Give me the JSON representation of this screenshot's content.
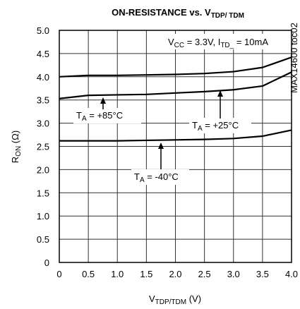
{
  "chart_data": {
    "type": "line",
    "title": [
      "ON-RESISTANCE vs. V",
      "TDP/ TDM"
    ],
    "x_label": [
      "V",
      "TDP/TDM",
      " (V)"
    ],
    "y_label": [
      "R",
      "ON",
      " (Ω)"
    ],
    "side_note": "MAX14600 toc02",
    "conditions": [
      "V",
      "CC",
      " = 3.3V, I",
      "TD_",
      " = 10mA"
    ],
    "annotations": [
      [
        "T",
        "A",
        " = +85°C"
      ],
      [
        "T",
        "A",
        " = +25°C"
      ],
      [
        "T",
        "A",
        " = -40°C"
      ]
    ],
    "x": [
      0,
      0.5,
      1,
      1.5,
      2,
      2.5,
      3,
      3.5,
      4
    ],
    "series": [
      {
        "color": "#000000",
        "values": [
          4.0,
          4.03,
          4.03,
          4.04,
          4.05,
          4.07,
          4.11,
          4.2,
          4.42
        ]
      },
      {
        "color": "#000000",
        "values": [
          3.53,
          3.6,
          3.61,
          3.62,
          3.65,
          3.68,
          3.72,
          3.8,
          4.1
        ]
      },
      {
        "color": "#000000",
        "values": [
          2.62,
          2.62,
          2.62,
          2.63,
          2.64,
          2.65,
          2.67,
          2.72,
          2.85
        ]
      }
    ],
    "xlim": [
      0,
      4
    ],
    "ylim": [
      0,
      5
    ],
    "xticks": [
      0,
      0.5,
      {
        "value": 1,
        "label": "1.0"
      },
      1.5,
      {
        "value": 2,
        "label": "2.0"
      },
      2.5,
      {
        "value": 3,
        "label": "3.0"
      },
      3.5,
      {
        "value": 4,
        "label": "4.0"
      }
    ],
    "yticks": [
      0,
      0.5,
      {
        "value": 1,
        "label": "1.0"
      },
      1.5,
      {
        "value": 2,
        "label": "2.0"
      },
      2.5,
      {
        "value": 3,
        "label": "3.0"
      },
      3.5,
      {
        "value": 4,
        "label": "4.0"
      },
      4.5,
      {
        "value": 5,
        "label": "5.0"
      }
    ],
    "grid": true
  }
}
